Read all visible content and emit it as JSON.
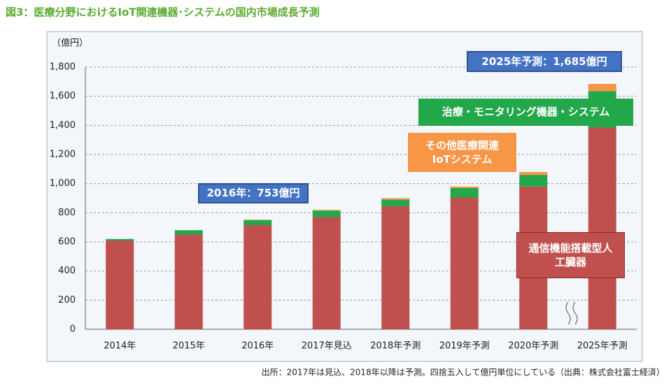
{
  "chart_data": {
    "type": "stacked_bar",
    "title": "図3：医療分野におけるIoT関連機器･システムの国内市場成長予測",
    "y_label": "（億円）",
    "categories": [
      "2014年",
      "2015年",
      "2016年",
      "2017年見込",
      "2018年予測",
      "2019年予測",
      "2020年予測",
      "2025年予測"
    ],
    "series": [
      {
        "name": "通信機能搭載型人工臓器",
        "color": "#c0504d",
        "values": [
          610,
          650,
          715,
          770,
          845,
          905,
          980,
          1385
        ]
      },
      {
        "name": "治療・モニタリング機器・システム",
        "color": "#22a84a",
        "values": [
          10,
          30,
          35,
          45,
          45,
          65,
          80,
          250
        ]
      },
      {
        "name": "その他医療関連IoTシステム",
        "color": "#f79646",
        "values": [
          0,
          0,
          3,
          5,
          10,
          10,
          20,
          50
        ]
      }
    ],
    "ylim": [
      0,
      1800
    ],
    "yticks": [
      0,
      200,
      400,
      600,
      800,
      {
        "value": 1000,
        "label": "1,000"
      },
      {
        "value": 1200,
        "label": "1,200"
      },
      {
        "value": 1400,
        "label": "1,400"
      },
      {
        "value": 1600,
        "label": "1,600"
      },
      {
        "value": 1800,
        "label": "1,800"
      }
    ],
    "grid": true,
    "annotations": [
      "2016年：753億円",
      "2025年予測：1,685億円"
    ],
    "source": "出所：2017年は見込、2018年以降は予測。四捨五入して億円単位にしている（出典：株式会社富士経済）"
  }
}
